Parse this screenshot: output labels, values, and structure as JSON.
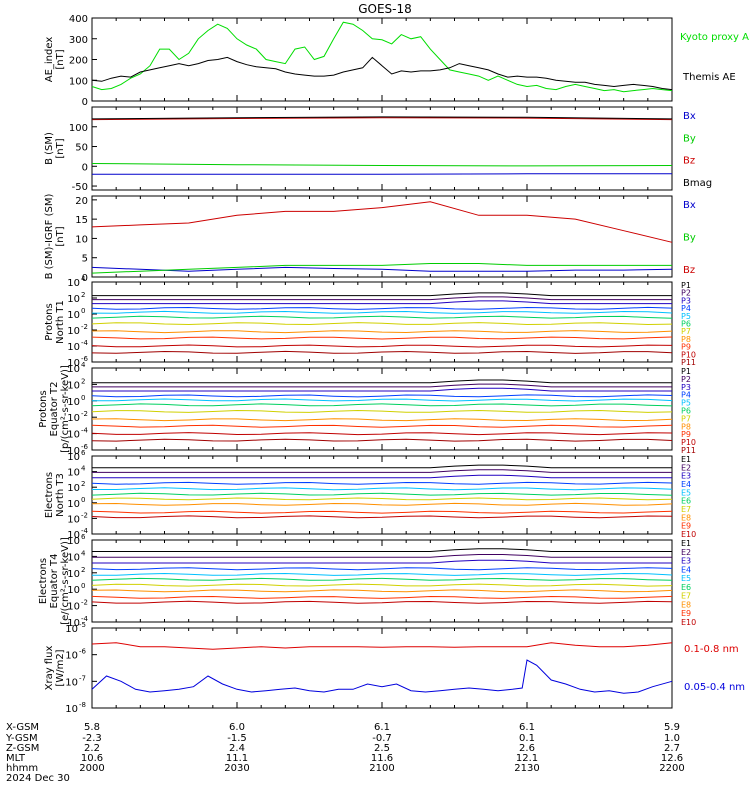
{
  "title": "GOES-18",
  "x_axis": {
    "time_ticks": [
      "2000",
      "2030",
      "2100",
      "2130",
      "2200"
    ],
    "rows": [
      {
        "label": "X-GSM",
        "values": [
          "5.8",
          "6.0",
          "6.1",
          "6.1",
          "5.9"
        ]
      },
      {
        "label": "Y-GSM",
        "values": [
          "-2.3",
          "-1.5",
          "-0.7",
          "0.1",
          "1.0"
        ]
      },
      {
        "label": "Z-GSM",
        "values": [
          "2.2",
          "2.4",
          "2.5",
          "2.6",
          "2.7"
        ]
      },
      {
        "label": "MLT",
        "values": [
          "10.6",
          "11.1",
          "11.6",
          "12.1",
          "12.6"
        ]
      },
      {
        "label": "hhmm",
        "values": [
          "",
          "",
          "",
          "",
          ""
        ]
      }
    ],
    "date": "2024 Dec 30"
  },
  "chart_data": [
    {
      "type": "line",
      "panel": "ae",
      "ylabel": [
        "AE_index",
        "[nT]"
      ],
      "ylim": [
        0,
        400
      ],
      "yticks": [
        "0",
        "100",
        "200",
        "300",
        "400"
      ],
      "series": [
        {
          "name": "Kyoto proxy AE",
          "color": "#00dd00",
          "x": [
            0,
            2,
            4,
            6,
            8,
            10,
            12,
            14,
            16,
            18,
            20,
            22,
            24,
            26,
            28,
            30,
            32,
            34,
            36,
            38,
            40,
            42,
            44,
            46,
            48,
            50,
            52,
            54,
            56,
            58,
            60,
            62,
            64,
            66,
            68,
            70,
            72,
            74,
            76,
            78,
            80,
            82,
            84,
            86,
            88,
            90,
            92,
            94,
            96,
            98,
            100,
            102,
            104,
            106,
            108,
            110,
            112,
            114,
            116,
            118,
            120
          ],
          "values": [
            70,
            55,
            60,
            80,
            110,
            130,
            170,
            250,
            250,
            200,
            230,
            300,
            340,
            370,
            350,
            300,
            270,
            250,
            200,
            190,
            180,
            250,
            260,
            200,
            215,
            300,
            380,
            370,
            340,
            300,
            295,
            275,
            320,
            300,
            310,
            250,
            200,
            150,
            140,
            130,
            120,
            100,
            120,
            100,
            80,
            70,
            75,
            60,
            55,
            70,
            80,
            70,
            60,
            50,
            55,
            45,
            50,
            55,
            60,
            55,
            50
          ]
        },
        {
          "name": "Themis AE",
          "color": "#000000",
          "x": [
            0,
            2,
            4,
            6,
            8,
            10,
            12,
            14,
            16,
            18,
            20,
            22,
            24,
            26,
            28,
            30,
            32,
            34,
            36,
            38,
            40,
            42,
            44,
            46,
            48,
            50,
            52,
            54,
            56,
            58,
            60,
            62,
            64,
            66,
            68,
            70,
            72,
            74,
            76,
            78,
            80,
            82,
            84,
            86,
            88,
            90,
            92,
            94,
            96,
            98,
            100,
            102,
            104,
            106,
            108,
            110,
            112,
            114,
            116,
            118,
            120
          ],
          "values": [
            100,
            95,
            110,
            120,
            115,
            140,
            150,
            160,
            170,
            180,
            170,
            180,
            195,
            200,
            210,
            190,
            175,
            165,
            160,
            155,
            140,
            130,
            125,
            120,
            120,
            125,
            140,
            150,
            160,
            210,
            170,
            130,
            145,
            140,
            145,
            145,
            150,
            160,
            180,
            170,
            160,
            150,
            130,
            115,
            120,
            115,
            115,
            110,
            100,
            95,
            90,
            90,
            80,
            75,
            70,
            75,
            80,
            75,
            70,
            60,
            55
          ]
        }
      ]
    },
    {
      "type": "line",
      "panel": "b",
      "ylabel": [
        "B (SM)",
        "[nT]"
      ],
      "ylim": [
        -60,
        150
      ],
      "yticks": [
        "-50",
        "0",
        "50",
        "100"
      ],
      "series": [
        {
          "name": "Bx",
          "color": "#0000cc",
          "x": [
            0,
            30,
            60,
            90,
            120
          ],
          "values": [
            -20,
            -20,
            -20,
            -19,
            -19
          ]
        },
        {
          "name": "By",
          "color": "#00cc00",
          "x": [
            0,
            30,
            60,
            90,
            120
          ],
          "values": [
            7,
            4,
            2,
            1,
            2
          ]
        },
        {
          "name": "Bz",
          "color": "#cc0000",
          "x": [
            0,
            30,
            60,
            90,
            120
          ],
          "values": [
            118,
            121,
            123,
            122,
            118
          ]
        },
        {
          "name": "Bmag",
          "color": "#000000",
          "x": [
            0,
            30,
            60,
            90,
            120
          ],
          "values": [
            120,
            123,
            125,
            124,
            120
          ]
        }
      ]
    },
    {
      "type": "line",
      "panel": "bdiff",
      "ylabel": [
        "B (SM)-IGRF (SM)",
        "[nT]"
      ],
      "ylim": [
        0,
        21
      ],
      "yticks": [
        "0",
        "5",
        "10",
        "15",
        "20"
      ],
      "series": [
        {
          "name": "Bx",
          "color": "#0000cc",
          "x": [
            0,
            10,
            20,
            30,
            40,
            50,
            60,
            70,
            80,
            90,
            100,
            110,
            120
          ],
          "values": [
            2.5,
            2,
            1.5,
            2,
            2.5,
            2.2,
            2,
            1.5,
            1.5,
            1.5,
            1.8,
            1.8,
            2
          ]
        },
        {
          "name": "By",
          "color": "#00cc00",
          "x": [
            0,
            10,
            20,
            30,
            40,
            50,
            60,
            70,
            80,
            90,
            100,
            110,
            120
          ],
          "values": [
            1,
            1.5,
            2,
            2.5,
            3,
            3,
            3,
            3.5,
            3.5,
            3,
            3,
            3,
            3
          ]
        },
        {
          "name": "Bz",
          "color": "#cc0000",
          "x": [
            0,
            10,
            20,
            30,
            40,
            50,
            60,
            70,
            80,
            90,
            100,
            110,
            120
          ],
          "values": [
            13,
            13.5,
            14,
            16,
            17,
            17,
            18,
            19.5,
            16,
            16,
            15,
            12,
            9
          ]
        }
      ]
    },
    {
      "type": "line",
      "panel": "protonsT1",
      "log": true,
      "ylabel": [
        "Protons",
        "North T1"
      ],
      "ylim_exp": [
        -6,
        4
      ],
      "yticks_exp": [
        -6,
        -4,
        -2,
        0,
        2,
        4
      ],
      "channels": [
        "P1",
        "P2",
        "P3",
        "P4",
        "P5",
        "P6",
        "P7",
        "P8",
        "P9",
        "P10",
        "P11"
      ],
      "channel_colors": [
        "#000000",
        "#400060",
        "#2000c0",
        "#0040ff",
        "#00c0ff",
        "#00d060",
        "#d0d000",
        "#ff9000",
        "#ff3000",
        "#c00000",
        "#a00000"
      ],
      "levels_exp": [
        2.3,
        1.8,
        1.3,
        0.7,
        0.2,
        -0.4,
        -1.2,
        -2.2,
        -3,
        -4,
        -4.8
      ]
    },
    {
      "type": "line",
      "panel": "protonsT2",
      "log": true,
      "ylabel": [
        "Protons",
        "Equator T2",
        "[p/(cm²-s-sr-keV)]"
      ],
      "ylim_exp": [
        -6,
        4
      ],
      "yticks_exp": [
        -6,
        -4,
        -2,
        0,
        2,
        4
      ],
      "channels": [
        "P1",
        "P2",
        "P3",
        "P4",
        "P5",
        "P6",
        "P7",
        "P8",
        "P9",
        "P10",
        "P11"
      ],
      "channel_colors": [
        "#000000",
        "#400060",
        "#2000c0",
        "#0040ff",
        "#00c0ff",
        "#00d060",
        "#d0d000",
        "#ff9000",
        "#ff3000",
        "#c00000",
        "#a00000"
      ],
      "levels_exp": [
        2.2,
        1.7,
        1.2,
        0.6,
        0.1,
        -0.5,
        -1.3,
        -2.3,
        -3.1,
        -4,
        -4.8
      ]
    },
    {
      "type": "line",
      "panel": "electronsT3",
      "log": true,
      "ylabel": [
        "Electrons",
        "North T3"
      ],
      "ylim_exp": [
        -4,
        6
      ],
      "yticks_exp": [
        -4,
        -2,
        0,
        2,
        4,
        6
      ],
      "channels": [
        "E1",
        "E2",
        "E3",
        "E4",
        "E5",
        "E6",
        "E7",
        "E8",
        "E9",
        "E10"
      ],
      "channel_colors": [
        "#000000",
        "#400060",
        "#2000c0",
        "#0040ff",
        "#00c0ff",
        "#00d060",
        "#d0d000",
        "#ff9000",
        "#ff3000",
        "#c00000"
      ],
      "levels_exp": [
        4.5,
        3.9,
        3.2,
        2.5,
        1.8,
        1.1,
        0.5,
        -0.2,
        -1.2,
        -1.8
      ]
    },
    {
      "type": "line",
      "panel": "electronsT4",
      "log": true,
      "ylabel": [
        "Electrons",
        "Equator T4",
        "[e/(cm²-s-sr-keV)]"
      ],
      "ylim_exp": [
        -4,
        6
      ],
      "yticks_exp": [
        -4,
        -2,
        0,
        2,
        4,
        6
      ],
      "channels": [
        "E1",
        "E2",
        "E3",
        "E4",
        "E5",
        "E6",
        "E7",
        "E8",
        "E9",
        "E10"
      ],
      "channel_colors": [
        "#000000",
        "#400060",
        "#2000c0",
        "#0040ff",
        "#00c0ff",
        "#00d060",
        "#d0d000",
        "#ff9000",
        "#ff3000",
        "#c00000"
      ],
      "levels_exp": [
        4.6,
        3.9,
        3.2,
        2.5,
        1.8,
        1.2,
        0.5,
        -0.2,
        -1,
        -1.6
      ]
    },
    {
      "type": "line",
      "panel": "xray",
      "log": true,
      "ylabel": [
        "Xray flux",
        "[W/m2]"
      ],
      "ylim_exp": [
        -8,
        -5
      ],
      "yticks_exp": [
        -8,
        -7,
        -6,
        -5
      ],
      "series": [
        {
          "name": "0.1-0.8 nm",
          "color": "#dd0000",
          "x": [
            0,
            5,
            10,
            15,
            20,
            25,
            30,
            35,
            40,
            45,
            50,
            55,
            60,
            65,
            70,
            75,
            80,
            85,
            90,
            95,
            100,
            105,
            110,
            115,
            120
          ],
          "values_exp": [
            -5.6,
            -5.55,
            -5.7,
            -5.7,
            -5.75,
            -5.8,
            -5.75,
            -5.7,
            -5.75,
            -5.7,
            -5.7,
            -5.7,
            -5.72,
            -5.7,
            -5.7,
            -5.72,
            -5.7,
            -5.7,
            -5.7,
            -5.55,
            -5.65,
            -5.7,
            -5.7,
            -5.65,
            -5.55
          ]
        },
        {
          "name": "0.05-0.4 nm",
          "color": "#0000dd",
          "x": [
            0,
            3,
            6,
            9,
            12,
            15,
            18,
            21,
            24,
            27,
            30,
            33,
            36,
            39,
            42,
            45,
            48,
            51,
            54,
            57,
            60,
            63,
            66,
            69,
            72,
            75,
            78,
            81,
            84,
            87,
            89,
            90,
            92,
            95,
            98,
            101,
            104,
            107,
            110,
            113,
            116,
            120
          ],
          "values_exp": [
            -7.3,
            -6.8,
            -7,
            -7.3,
            -7.4,
            -7.35,
            -7.3,
            -7.2,
            -6.8,
            -7.1,
            -7.3,
            -7.4,
            -7.35,
            -7.3,
            -7.25,
            -7.35,
            -7.4,
            -7.3,
            -7.3,
            -7.1,
            -7.2,
            -7.1,
            -7.35,
            -7.4,
            -7.35,
            -7.3,
            -7.25,
            -7.3,
            -7.35,
            -7.3,
            -7.25,
            -6.2,
            -6.4,
            -6.95,
            -7.1,
            -7.3,
            -7.4,
            -7.35,
            -7.45,
            -7.4,
            -7.2,
            -7
          ]
        }
      ]
    }
  ]
}
